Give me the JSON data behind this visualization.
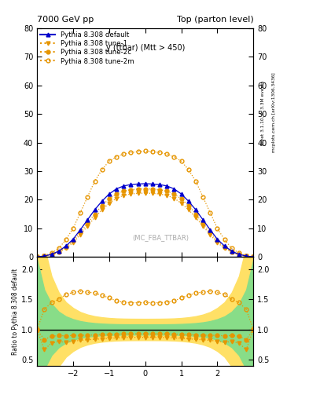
{
  "title_left": "7000 GeV pp",
  "title_right": "Top (parton level)",
  "ylabel_ratio": "Ratio to Pythia 8.308 default",
  "plot_label": "y (ttbar) (Mtt > 450)",
  "watermark": "(MC_FBA_TTBAR)",
  "right_label_top": "Rivet 3.1.10, ≥ 3.3M events",
  "right_label_bot": "mcplots.cern.ch [arXiv:1306.3436]",
  "legend": [
    {
      "label": "Pythia 8.308 default",
      "color": "#0000cc",
      "marker": "^",
      "linestyle": "-",
      "filled": true
    },
    {
      "label": "Pythia 8.308 tune-1",
      "color": "#e69500",
      "marker": "v",
      "linestyle": ":",
      "filled": true
    },
    {
      "label": "Pythia 8.308 tune-2c",
      "color": "#e69500",
      "marker": "o",
      "linestyle": ":",
      "filled": true
    },
    {
      "label": "Pythia 8.308 tune-2m",
      "color": "#e69500",
      "marker": "o",
      "linestyle": ":",
      "filled": false
    }
  ],
  "xlim": [
    -3.0,
    3.0
  ],
  "ylim_main": [
    0,
    80
  ],
  "ylim_ratio": [
    0.4,
    2.2
  ],
  "yticks_main": [
    0,
    10,
    20,
    30,
    40,
    50,
    60,
    70,
    80
  ],
  "yticks_ratio": [
    0.5,
    1.0,
    1.5,
    2.0
  ],
  "xticks": [
    -2,
    -1,
    0,
    1,
    2
  ],
  "series": {
    "x": [
      -3.0,
      -2.8,
      -2.6,
      -2.4,
      -2.2,
      -2.0,
      -1.8,
      -1.6,
      -1.4,
      -1.2,
      -1.0,
      -0.8,
      -0.6,
      -0.4,
      -0.2,
      0.0,
      0.2,
      0.4,
      0.6,
      0.8,
      1.0,
      1.2,
      1.4,
      1.6,
      1.8,
      2.0,
      2.2,
      2.4,
      2.6,
      2.8,
      3.0
    ],
    "default": [
      0.01,
      0.3,
      0.9,
      2.0,
      3.8,
      6.2,
      9.5,
      13.0,
      16.5,
      19.5,
      22.0,
      23.8,
      24.8,
      25.3,
      25.5,
      25.6,
      25.5,
      25.3,
      24.8,
      23.8,
      22.0,
      19.5,
      16.5,
      13.0,
      9.5,
      6.2,
      3.8,
      2.0,
      0.9,
      0.3,
      0.01
    ],
    "tune1": [
      0.01,
      0.2,
      0.7,
      1.6,
      3.0,
      5.0,
      7.8,
      10.8,
      13.8,
      16.5,
      18.8,
      20.5,
      21.5,
      22.0,
      22.2,
      22.3,
      22.2,
      22.0,
      21.5,
      20.5,
      18.8,
      16.5,
      13.8,
      10.8,
      7.8,
      5.0,
      3.0,
      1.6,
      0.7,
      0.2,
      0.01
    ],
    "tune2c": [
      0.01,
      0.25,
      0.8,
      1.8,
      3.4,
      5.6,
      8.6,
      11.8,
      15.0,
      18.0,
      20.3,
      22.0,
      23.0,
      23.5,
      23.7,
      23.8,
      23.7,
      23.5,
      23.0,
      22.0,
      20.3,
      18.0,
      15.0,
      11.8,
      8.6,
      5.6,
      3.4,
      1.8,
      0.8,
      0.25,
      0.01
    ],
    "tune2m": [
      0.01,
      0.4,
      1.3,
      3.0,
      6.0,
      10.0,
      15.5,
      21.0,
      26.5,
      30.5,
      33.5,
      35.0,
      36.0,
      36.5,
      36.8,
      37.0,
      36.8,
      36.5,
      36.0,
      35.0,
      33.5,
      30.5,
      26.5,
      21.0,
      15.5,
      10.0,
      6.0,
      3.0,
      1.3,
      0.4,
      0.01
    ]
  }
}
